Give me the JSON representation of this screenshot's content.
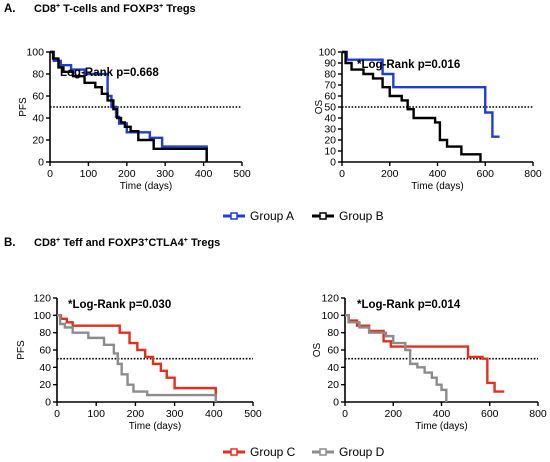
{
  "colors": {
    "group_a": "#1f3fd0",
    "group_b": "#000000",
    "group_c": "#e0301e",
    "group_d": "#8c8c8c",
    "axis": "#000000"
  },
  "figure": {
    "section_a": {
      "letter": "A.",
      "title_parts": [
        "CD8",
        "+",
        " T-cells and FOXP3",
        "+",
        " Tregs"
      ],
      "legend": [
        "Group A",
        "Group B"
      ]
    },
    "section_b": {
      "letter": "B.",
      "title_parts": [
        "CD8",
        "+",
        " Teff and FOXP3",
        "+",
        "CTLA4",
        "+",
        " Tregs"
      ],
      "legend": [
        "Group C",
        "Group D"
      ]
    }
  },
  "chart_data": [
    {
      "type": "line",
      "subtype": "kaplan-meier-step",
      "panel": "A-PFS",
      "annotation": "Log-Rank p=0.668",
      "xlabel": "Time (days)",
      "ylabel": "PFS",
      "xlim": [
        0,
        500
      ],
      "ylim": [
        0,
        100
      ],
      "xticks": [
        0,
        100,
        200,
        300,
        400,
        500
      ],
      "yticks": [
        0,
        20,
        40,
        60,
        80,
        100
      ],
      "reference_line": 50,
      "series": [
        {
          "name": "Group A",
          "color_key": "group_a",
          "x": [
            0,
            10,
            28,
            55,
            90,
            150,
            160,
            172,
            180,
            200,
            260,
            292,
            408,
            408
          ],
          "y": [
            100,
            92,
            88,
            84,
            80,
            60,
            50,
            41,
            35,
            27,
            22,
            14,
            14,
            0
          ]
        },
        {
          "name": "Group B",
          "color_key": "group_b",
          "x": [
            0,
            8,
            22,
            35,
            60,
            90,
            118,
            135,
            150,
            165,
            175,
            185,
            195,
            210,
            230,
            270,
            300,
            400,
            408,
            408
          ],
          "y": [
            100,
            94,
            86,
            82,
            78,
            72,
            68,
            62,
            56,
            48,
            40,
            36,
            32,
            28,
            20,
            12,
            12,
            12,
            12,
            0
          ]
        }
      ]
    },
    {
      "type": "line",
      "subtype": "kaplan-meier-step",
      "panel": "A-OS",
      "annotation": "*Log-Rank p=0.016",
      "xlabel": "Time (days)",
      "ylabel": "OS",
      "xlim": [
        0,
        800
      ],
      "ylim": [
        0,
        100
      ],
      "xticks": [
        0,
        200,
        400,
        600,
        800
      ],
      "yticks": [
        0,
        10,
        20,
        30,
        40,
        50,
        60,
        70,
        80,
        90,
        100
      ],
      "reference_line": 50,
      "series": [
        {
          "name": "Group A",
          "color_key": "group_a",
          "x": [
            0,
            20,
            170,
            215,
            240,
            600,
            630,
            660
          ],
          "y": [
            100,
            93,
            80,
            68,
            68,
            45,
            23,
            23
          ]
        },
        {
          "name": "Group B",
          "color_key": "group_b",
          "x": [
            0,
            15,
            40,
            90,
            130,
            170,
            200,
            250,
            275,
            300,
            390,
            410,
            440,
            500,
            580
          ],
          "y": [
            100,
            90,
            84,
            80,
            76,
            68,
            60,
            56,
            48,
            40,
            36,
            20,
            14,
            7,
            0
          ]
        }
      ]
    },
    {
      "type": "line",
      "subtype": "kaplan-meier-step",
      "panel": "B-PFS",
      "annotation": "*Log-Rank p=0.030",
      "xlabel": "Time (days)",
      "ylabel": "PFS",
      "xlim": [
        0,
        500
      ],
      "ylim": [
        0,
        120
      ],
      "xticks": [
        0,
        100,
        200,
        300,
        400,
        500
      ],
      "yticks": [
        0,
        20,
        40,
        60,
        80,
        100,
        120
      ],
      "reference_line": 50,
      "series": [
        {
          "name": "Group C",
          "color_key": "group_c",
          "x": [
            0,
            10,
            25,
            40,
            160,
            185,
            205,
            225,
            245,
            265,
            280,
            300,
            405,
            405
          ],
          "y": [
            100,
            96,
            92,
            88,
            80,
            68,
            60,
            52,
            44,
            36,
            28,
            16,
            16,
            0
          ]
        },
        {
          "name": "Group D",
          "color_key": "group_d",
          "x": [
            0,
            8,
            20,
            40,
            80,
            120,
            145,
            155,
            165,
            180,
            195,
            230,
            400,
            405
          ],
          "y": [
            100,
            90,
            86,
            80,
            74,
            66,
            56,
            44,
            32,
            20,
            12,
            8,
            8,
            0
          ]
        }
      ]
    },
    {
      "type": "line",
      "subtype": "kaplan-meier-step",
      "panel": "B-OS",
      "annotation": "*Log-Rank p=0.014",
      "xlabel": "Time (days)",
      "ylabel": "OS",
      "xlim": [
        0,
        800
      ],
      "ylim": [
        0,
        120
      ],
      "xticks": [
        0,
        200,
        400,
        600,
        800
      ],
      "yticks": [
        0,
        20,
        40,
        60,
        80,
        100,
        120
      ],
      "reference_line": 50,
      "series": [
        {
          "name": "Group C",
          "color_key": "group_c",
          "x": [
            0,
            15,
            50,
            100,
            160,
            190,
            510,
            570,
            590,
            620,
            660
          ],
          "y": [
            100,
            94,
            88,
            82,
            70,
            64,
            52,
            50,
            22,
            12,
            12
          ]
        },
        {
          "name": "Group D",
          "color_key": "group_d",
          "x": [
            0,
            15,
            60,
            100,
            170,
            200,
            250,
            270,
            300,
            330,
            360,
            380,
            400,
            420
          ],
          "y": [
            100,
            92,
            86,
            80,
            76,
            68,
            60,
            44,
            40,
            34,
            28,
            20,
            14,
            0
          ]
        }
      ]
    }
  ]
}
